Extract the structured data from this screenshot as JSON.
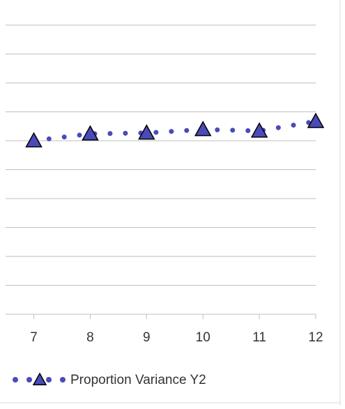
{
  "chart_data": {
    "type": "line",
    "x": [
      7,
      8,
      9,
      10,
      11,
      12
    ],
    "xlim": [
      6.4,
      12
    ],
    "xticks": [
      7,
      8,
      9,
      10,
      11,
      12
    ],
    "ylim": [
      0,
      10
    ],
    "yticks": [
      0,
      1,
      2,
      3,
      4,
      5,
      6,
      7,
      8,
      9,
      10
    ],
    "grid": true,
    "legend": "bottom",
    "series": [
      {
        "name": "Proportion Variance Y2",
        "color": "#4a4ab8",
        "marker": "triangle",
        "values": [
          6.0,
          6.24,
          6.27,
          6.39,
          6.34,
          6.67
        ]
      }
    ]
  }
}
